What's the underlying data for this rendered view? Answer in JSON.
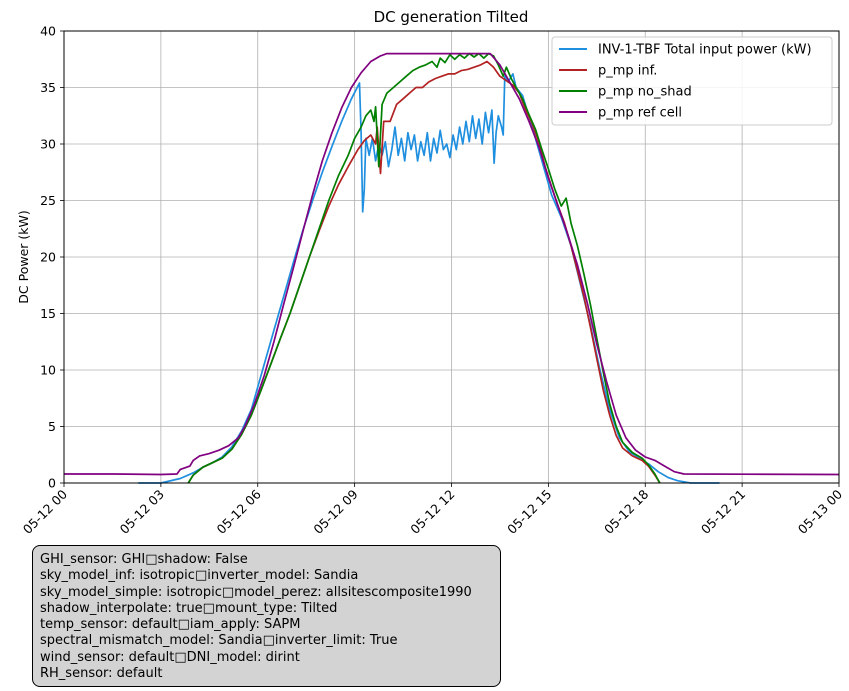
{
  "chart_data": {
    "type": "line",
    "title": "DC generation Tilted",
    "xlabel": "",
    "ylabel": "DC Power (kW)",
    "x_unit": "hours since 05-12 00:00",
    "xlim": [
      0,
      24
    ],
    "ylim": [
      0,
      40
    ],
    "grid": true,
    "legend_position": "top-right",
    "x_ticks": [
      {
        "value": 0,
        "label": "05-12 00"
      },
      {
        "value": 3,
        "label": "05-12 03"
      },
      {
        "value": 6,
        "label": "05-12 06"
      },
      {
        "value": 9,
        "label": "05-12 09"
      },
      {
        "value": 12,
        "label": "05-12 12"
      },
      {
        "value": 15,
        "label": "05-12 15"
      },
      {
        "value": 18,
        "label": "05-12 18"
      },
      {
        "value": 21,
        "label": "05-12 21"
      },
      {
        "value": 24,
        "label": "05-13 00"
      }
    ],
    "y_ticks": [
      0,
      5,
      10,
      15,
      20,
      25,
      30,
      35,
      40
    ],
    "series": [
      {
        "name": "INV-1-TBF Total input power (kW)",
        "color": "#1f8fe0",
        "points": [
          [
            2.3,
            0
          ],
          [
            3.0,
            0
          ],
          [
            3.6,
            0.4
          ],
          [
            4.0,
            0.9
          ],
          [
            4.3,
            1.4
          ],
          [
            4.6,
            1.8
          ],
          [
            4.9,
            2.3
          ],
          [
            5.2,
            3.2
          ],
          [
            5.5,
            4.6
          ],
          [
            5.8,
            6.5
          ],
          [
            6.0,
            8.5
          ],
          [
            6.2,
            10.5
          ],
          [
            6.5,
            13.5
          ],
          [
            6.8,
            16.5
          ],
          [
            7.1,
            19.5
          ],
          [
            7.4,
            22.4
          ],
          [
            7.7,
            25.0
          ],
          [
            8.0,
            27.5
          ],
          [
            8.3,
            29.8
          ],
          [
            8.6,
            32.0
          ],
          [
            8.9,
            34.0
          ],
          [
            9.15,
            35.4
          ],
          [
            9.2,
            31.0
          ],
          [
            9.25,
            24.0
          ],
          [
            9.3,
            26.0
          ],
          [
            9.35,
            30.5
          ],
          [
            9.45,
            29.0
          ],
          [
            9.55,
            30.5
          ],
          [
            9.65,
            28.5
          ],
          [
            9.75,
            30.0
          ],
          [
            9.85,
            29.0
          ],
          [
            9.95,
            30.2
          ],
          [
            10.05,
            28.0
          ],
          [
            10.15,
            29.5
          ],
          [
            10.25,
            31.5
          ],
          [
            10.35,
            29.0
          ],
          [
            10.45,
            30.5
          ],
          [
            10.55,
            28.5
          ],
          [
            10.65,
            31.0
          ],
          [
            10.75,
            29.5
          ],
          [
            10.85,
            30.8
          ],
          [
            10.95,
            28.5
          ],
          [
            11.05,
            30.2
          ],
          [
            11.15,
            29.0
          ],
          [
            11.25,
            31.0
          ],
          [
            11.35,
            28.5
          ],
          [
            11.45,
            30.5
          ],
          [
            11.55,
            29.2
          ],
          [
            11.65,
            31.2
          ],
          [
            11.75,
            29.5
          ],
          [
            11.85,
            30.0
          ],
          [
            11.95,
            28.8
          ],
          [
            12.05,
            30.8
          ],
          [
            12.15,
            29.5
          ],
          [
            12.25,
            31.5
          ],
          [
            12.35,
            30.0
          ],
          [
            12.45,
            32.0
          ],
          [
            12.55,
            30.2
          ],
          [
            12.65,
            32.5
          ],
          [
            12.75,
            30.5
          ],
          [
            12.85,
            32.2
          ],
          [
            12.95,
            30.0
          ],
          [
            13.05,
            32.8
          ],
          [
            13.15,
            31.0
          ],
          [
            13.25,
            33.0
          ],
          [
            13.32,
            28.3
          ],
          [
            13.38,
            31.0
          ],
          [
            13.45,
            32.5
          ],
          [
            13.5,
            32.0
          ],
          [
            13.55,
            31.5
          ],
          [
            13.6,
            30.8
          ],
          [
            13.65,
            36.0
          ],
          [
            13.75,
            35.5
          ],
          [
            13.9,
            36.2
          ],
          [
            14.0,
            35.0
          ],
          [
            14.2,
            34.3
          ],
          [
            14.5,
            31.5
          ],
          [
            14.8,
            28.5
          ],
          [
            15.1,
            25.5
          ],
          [
            15.4,
            23.5
          ],
          [
            15.7,
            21.0
          ],
          [
            16.0,
            17.5
          ],
          [
            16.3,
            14.0
          ],
          [
            16.6,
            10.0
          ],
          [
            16.9,
            6.5
          ],
          [
            17.2,
            4.0
          ],
          [
            17.5,
            2.8
          ],
          [
            17.8,
            2.2
          ],
          [
            18.1,
            1.7
          ],
          [
            18.4,
            1.0
          ],
          [
            18.7,
            0.5
          ],
          [
            19.0,
            0.2
          ],
          [
            19.4,
            0
          ],
          [
            20.3,
            0
          ]
        ]
      },
      {
        "name": "p_mp inf.",
        "color": "#b22222",
        "points": [
          [
            3.85,
            0
          ],
          [
            4.0,
            0.7
          ],
          [
            4.3,
            1.4
          ],
          [
            4.6,
            1.8
          ],
          [
            4.9,
            2.2
          ],
          [
            5.2,
            3.0
          ],
          [
            5.5,
            4.3
          ],
          [
            5.8,
            6.0
          ],
          [
            6.1,
            8.2
          ],
          [
            6.4,
            10.5
          ],
          [
            6.7,
            12.8
          ],
          [
            7.0,
            15.0
          ],
          [
            7.3,
            17.5
          ],
          [
            7.6,
            20.0
          ],
          [
            7.9,
            22.3
          ],
          [
            8.2,
            24.5
          ],
          [
            8.5,
            26.4
          ],
          [
            8.8,
            28.0
          ],
          [
            9.1,
            29.5
          ],
          [
            9.3,
            30.3
          ],
          [
            9.5,
            30.8
          ],
          [
            9.65,
            30.0
          ],
          [
            9.7,
            31.5
          ],
          [
            9.8,
            27.4
          ],
          [
            9.9,
            32.0
          ],
          [
            10.1,
            32.0
          ],
          [
            10.3,
            33.5
          ],
          [
            10.5,
            34.0
          ],
          [
            10.7,
            34.5
          ],
          [
            10.9,
            35.0
          ],
          [
            11.1,
            35.0
          ],
          [
            11.3,
            35.5
          ],
          [
            11.5,
            35.8
          ],
          [
            11.7,
            36.0
          ],
          [
            11.9,
            36.2
          ],
          [
            12.1,
            36.2
          ],
          [
            12.3,
            36.5
          ],
          [
            12.5,
            36.6
          ],
          [
            12.7,
            36.8
          ],
          [
            12.9,
            37.0
          ],
          [
            13.1,
            37.3
          ],
          [
            13.3,
            36.8
          ],
          [
            13.5,
            36.0
          ],
          [
            13.7,
            35.6
          ],
          [
            13.9,
            35.2
          ],
          [
            14.1,
            34.5
          ],
          [
            14.3,
            33.0
          ],
          [
            14.5,
            31.8
          ],
          [
            14.7,
            30.2
          ],
          [
            14.9,
            28.0
          ],
          [
            15.1,
            26.2
          ],
          [
            15.3,
            24.5
          ],
          [
            15.5,
            23.0
          ],
          [
            15.7,
            21.0
          ],
          [
            15.9,
            18.8
          ],
          [
            16.1,
            16.5
          ],
          [
            16.3,
            13.8
          ],
          [
            16.5,
            11.0
          ],
          [
            16.7,
            8.2
          ],
          [
            16.9,
            6.0
          ],
          [
            17.1,
            4.2
          ],
          [
            17.3,
            3.1
          ],
          [
            17.6,
            2.4
          ],
          [
            17.9,
            2.0
          ],
          [
            18.1,
            1.5
          ],
          [
            18.3,
            0.7
          ],
          [
            18.45,
            0
          ]
        ]
      },
      {
        "name": "p_mp no_shad",
        "color": "#008000",
        "points": [
          [
            3.85,
            0
          ],
          [
            4.0,
            0.7
          ],
          [
            4.3,
            1.4
          ],
          [
            4.6,
            1.8
          ],
          [
            4.9,
            2.2
          ],
          [
            5.2,
            3.0
          ],
          [
            5.5,
            4.3
          ],
          [
            5.8,
            6.0
          ],
          [
            6.1,
            8.2
          ],
          [
            6.4,
            10.5
          ],
          [
            6.7,
            12.8
          ],
          [
            7.0,
            15.0
          ],
          [
            7.3,
            17.5
          ],
          [
            7.6,
            20.0
          ],
          [
            7.9,
            22.5
          ],
          [
            8.2,
            25.0
          ],
          [
            8.5,
            27.2
          ],
          [
            8.8,
            29.0
          ],
          [
            9.0,
            30.5
          ],
          [
            9.2,
            31.5
          ],
          [
            9.35,
            32.5
          ],
          [
            9.5,
            33.0
          ],
          [
            9.6,
            32.0
          ],
          [
            9.65,
            33.3
          ],
          [
            9.75,
            28.0
          ],
          [
            9.85,
            33.5
          ],
          [
            10.0,
            34.5
          ],
          [
            10.2,
            35.0
          ],
          [
            10.4,
            35.5
          ],
          [
            10.6,
            36.0
          ],
          [
            10.8,
            36.5
          ],
          [
            11.0,
            36.8
          ],
          [
            11.2,
            37.0
          ],
          [
            11.4,
            37.3
          ],
          [
            11.55,
            36.8
          ],
          [
            11.65,
            37.6
          ],
          [
            11.8,
            37.2
          ],
          [
            11.95,
            37.9
          ],
          [
            12.1,
            37.5
          ],
          [
            12.25,
            37.9
          ],
          [
            12.4,
            37.6
          ],
          [
            12.55,
            38.0
          ],
          [
            12.7,
            37.7
          ],
          [
            12.85,
            38.0
          ],
          [
            13.0,
            37.6
          ],
          [
            13.15,
            38.0
          ],
          [
            13.3,
            37.8
          ],
          [
            13.45,
            37.0
          ],
          [
            13.6,
            36.0
          ],
          [
            13.7,
            36.8
          ],
          [
            13.85,
            35.8
          ],
          [
            14.0,
            35.0
          ],
          [
            14.2,
            34.0
          ],
          [
            14.4,
            32.6
          ],
          [
            14.6,
            31.3
          ],
          [
            14.8,
            29.5
          ],
          [
            15.0,
            27.8
          ],
          [
            15.2,
            26.0
          ],
          [
            15.4,
            24.5
          ],
          [
            15.55,
            25.2
          ],
          [
            15.7,
            23.0
          ],
          [
            15.9,
            21.0
          ],
          [
            16.1,
            18.5
          ],
          [
            16.3,
            15.8
          ],
          [
            16.5,
            12.8
          ],
          [
            16.7,
            9.8
          ],
          [
            16.9,
            7.0
          ],
          [
            17.1,
            5.0
          ],
          [
            17.3,
            3.6
          ],
          [
            17.6,
            2.7
          ],
          [
            17.9,
            2.2
          ],
          [
            18.1,
            1.6
          ],
          [
            18.3,
            0.8
          ],
          [
            18.45,
            0
          ]
        ]
      },
      {
        "name": "p_mp ref cell",
        "color": "#800080",
        "points": [
          [
            0,
            0.8
          ],
          [
            1.5,
            0.8
          ],
          [
            3.0,
            0.75
          ],
          [
            3.5,
            0.8
          ],
          [
            3.6,
            1.2
          ],
          [
            3.9,
            1.5
          ],
          [
            4.0,
            2.0
          ],
          [
            4.2,
            2.4
          ],
          [
            4.5,
            2.6
          ],
          [
            4.8,
            2.9
          ],
          [
            5.1,
            3.3
          ],
          [
            5.4,
            4.0
          ],
          [
            5.6,
            5.0
          ],
          [
            5.9,
            7.0
          ],
          [
            6.2,
            9.5
          ],
          [
            6.5,
            12.5
          ],
          [
            6.8,
            15.8
          ],
          [
            7.1,
            19.0
          ],
          [
            7.4,
            22.3
          ],
          [
            7.7,
            25.5
          ],
          [
            8.0,
            28.5
          ],
          [
            8.3,
            31.0
          ],
          [
            8.6,
            33.2
          ],
          [
            8.9,
            35.0
          ],
          [
            9.2,
            36.3
          ],
          [
            9.5,
            37.3
          ],
          [
            9.8,
            37.8
          ],
          [
            10.0,
            38.0
          ],
          [
            13.2,
            38.0
          ],
          [
            13.5,
            37.0
          ],
          [
            13.8,
            35.5
          ],
          [
            14.1,
            34.0
          ],
          [
            14.4,
            32.0
          ],
          [
            14.7,
            29.8
          ],
          [
            15.0,
            27.0
          ],
          [
            15.3,
            24.5
          ],
          [
            15.6,
            22.0
          ],
          [
            15.9,
            19.3
          ],
          [
            16.2,
            16.0
          ],
          [
            16.5,
            12.3
          ],
          [
            16.8,
            9.0
          ],
          [
            17.1,
            6.0
          ],
          [
            17.4,
            4.0
          ],
          [
            17.7,
            2.9
          ],
          [
            18.0,
            2.3
          ],
          [
            18.3,
            2.0
          ],
          [
            18.6,
            1.5
          ],
          [
            18.9,
            1.0
          ],
          [
            19.2,
            0.8
          ],
          [
            21.0,
            0.78
          ],
          [
            24.0,
            0.75
          ]
        ]
      }
    ]
  },
  "info_box": {
    "lines": [
      "GHI_sensor: GHI□shadow: False",
      "sky_model_inf: isotropic□inverter_model: Sandia",
      "sky_model_simple: isotropic□model_perez: allsitescomposite1990",
      "shadow_interpolate: true□mount_type: Tilted",
      "temp_sensor: default□iam_apply: SAPM",
      "spectral_mismatch_model: Sandia□inverter_limit: True",
      "wind_sensor: default□DNI_model: dirint",
      "RH_sensor: default"
    ]
  }
}
